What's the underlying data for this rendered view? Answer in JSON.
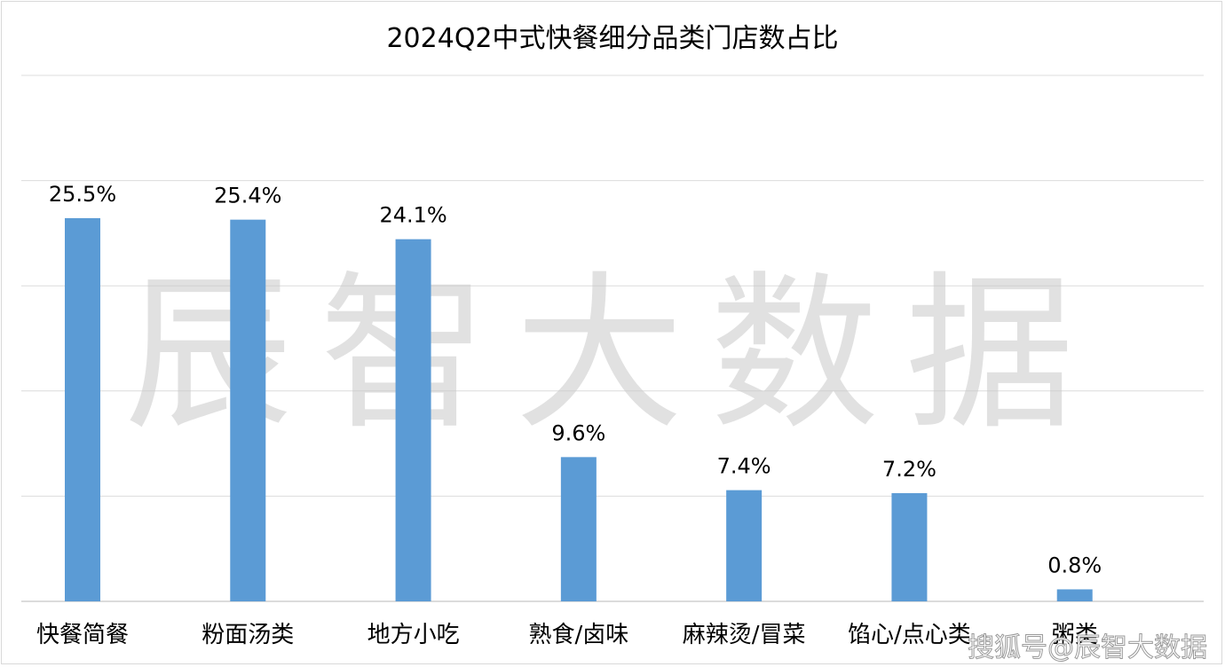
{
  "chart_data": {
    "type": "bar",
    "title": "2024Q2中式快餐细分品类门店数占比",
    "categories": [
      "快餐简餐",
      "粉面汤类",
      "地方小吃",
      "熟食/卤味",
      "麻辣烫/冒菜",
      "馅心/点心类",
      "粥类"
    ],
    "values": [
      25.5,
      25.4,
      24.1,
      9.6,
      7.4,
      7.2,
      0.8
    ],
    "data_labels": [
      "25.5%",
      "25.4%",
      "24.1%",
      "9.6%",
      "7.4%",
      "7.2%",
      "0.8%"
    ],
    "ylim": [
      0,
      35
    ],
    "grid": true,
    "legend": "none",
    "bar_color": "#5b9bd5"
  },
  "watermark": {
    "main": "辰智大数据",
    "footer": "搜狐号@辰智大数据"
  }
}
